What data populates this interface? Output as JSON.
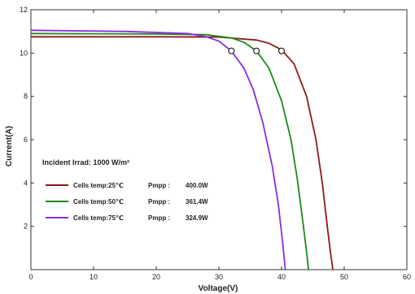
{
  "chart_data": {
    "type": "line",
    "title": "",
    "xlabel": "Voltage(V)",
    "ylabel": "Current(A)",
    "xlim": [
      0,
      60
    ],
    "ylim": [
      0,
      12
    ],
    "xticks": [
      "0",
      "10",
      "20",
      "30",
      "40",
      "50",
      "60"
    ],
    "yticks": [
      "2",
      "4",
      "6",
      "8",
      "10",
      "12"
    ],
    "grid": false,
    "legend_position": "lower-left",
    "annotation": "Incident Irrad:  1000 W/m²",
    "series": [
      {
        "name": "Cells temp:25℃",
        "pmpp_label": "Pmpp :",
        "pmpp_value": "400.0W",
        "color": "#8b1a1a",
        "mpp": [
          40,
          10.1
        ],
        "x": [
          0,
          20,
          30,
          36,
          38,
          40,
          42,
          44,
          45.5,
          46.5,
          47.3,
          47.8,
          48.2
        ],
        "y": [
          10.75,
          10.75,
          10.74,
          10.6,
          10.45,
          10.15,
          9.5,
          8.0,
          6.0,
          4.0,
          2.0,
          0.8,
          0
        ]
      },
      {
        "name": "Cells temp:50℃",
        "pmpp_label": "Pmpp :",
        "pmpp_value": "361.4W",
        "color": "#1a8a1a",
        "mpp": [
          36,
          10.1
        ],
        "x": [
          0,
          20,
          28,
          32,
          34,
          36,
          38,
          40,
          41.5,
          42.5,
          43.5,
          44.0,
          44.3
        ],
        "y": [
          10.9,
          10.88,
          10.85,
          10.7,
          10.5,
          10.1,
          9.3,
          7.8,
          6.0,
          4.2,
          2.0,
          0.8,
          0
        ]
      },
      {
        "name": "Cells temp:75℃",
        "pmpp_label": "Pmpp :",
        "pmpp_value": "324.9W",
        "color": "#8a2be2",
        "mpp": [
          32,
          10.1
        ],
        "x": [
          0,
          15,
          25,
          28,
          30,
          32,
          34,
          35.5,
          37,
          38.5,
          39.5,
          40.2,
          40.6
        ],
        "y": [
          11.05,
          11.0,
          10.9,
          10.75,
          10.55,
          10.1,
          9.3,
          8.3,
          6.8,
          4.8,
          3.0,
          1.2,
          0
        ]
      }
    ]
  }
}
